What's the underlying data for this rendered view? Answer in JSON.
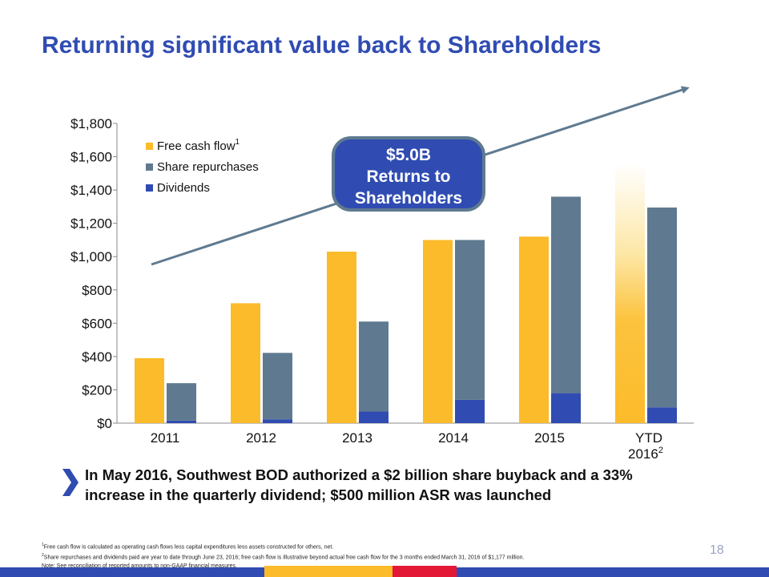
{
  "title": "Returning significant value back to Shareholders",
  "bubble": {
    "line1": "$5.0B",
    "line2": "Returns to",
    "line3": "Shareholders"
  },
  "callout": "In May 2016, Southwest BOD authorized a $2 billion share buyback and a 33% increase in the quarterly dividend; $500 million ASR was launched",
  "footnotes": [
    {
      "sup": "1",
      "text": "Free cash flow is calculated as operating cash flows less capital expenditures less assets constructed for others, net."
    },
    {
      "sup": "2",
      "text": "Share repurchases and dividends paid are year to date through June 23, 2016; free cash flow is illustrative beyond actual free cash flow for the 3 months ended March 31, 2016 of $1,177 million."
    },
    {
      "sup": "",
      "text": "Note: See reconciliation of reported amounts to non-GAAP financial measures."
    }
  ],
  "page_number": "18",
  "colors": {
    "brand_blue": "#304cb2",
    "free_cash_flow": "#fcbb2a",
    "share_repurchases": "#5f7a90",
    "dividends": "#304cb2",
    "arrow": "#5f7a90"
  },
  "chart_data": {
    "type": "bar",
    "categories": [
      "2011",
      "2012",
      "2013",
      "2014",
      "2015",
      "YTD 2016"
    ],
    "category_superscripts": [
      "",
      "",
      "",
      "",
      "",
      "2"
    ],
    "ylim": [
      0,
      1800
    ],
    "yticks": [
      0,
      200,
      400,
      600,
      800,
      1000,
      1200,
      1400,
      1600,
      1800
    ],
    "ytick_labels": [
      "$0",
      "$200",
      "$400",
      "$600",
      "$800",
      "$1,000",
      "$1,200",
      "$1,400",
      "$1,600",
      "$1,800"
    ],
    "series": [
      {
        "name": "Free cash flow",
        "superscript": "1",
        "stack": "fcf",
        "values": [
          390,
          720,
          1030,
          1100,
          1120,
          1560
        ]
      },
      {
        "name": "Share repurchases",
        "superscript": "",
        "stack": "returns",
        "values": [
          225,
          400,
          540,
          960,
          1180,
          1200
        ]
      },
      {
        "name": "Dividends",
        "superscript": "",
        "stack": "returns",
        "values": [
          15,
          22,
          70,
          140,
          180,
          95
        ]
      }
    ],
    "illustrative_category": "YTD 2016",
    "legend": "top-left"
  }
}
